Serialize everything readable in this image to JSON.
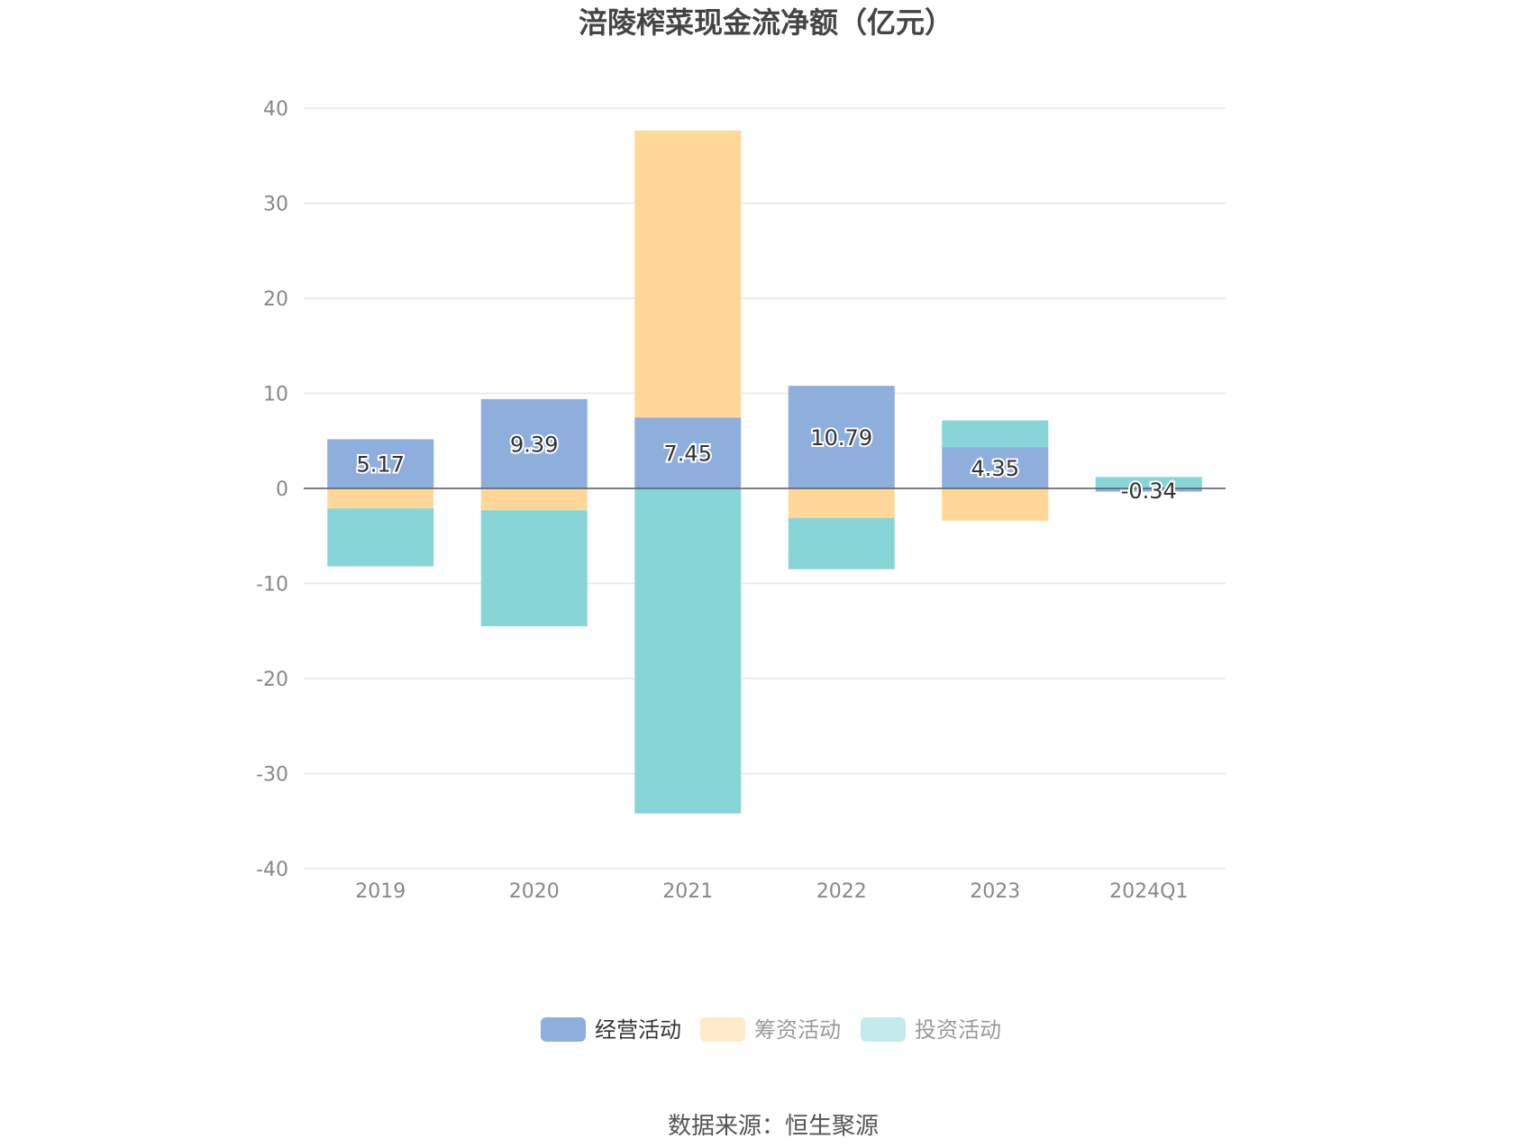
{
  "chart_data": {
    "type": "bar",
    "stacked": true,
    "title": "涪陵榨菜现金流净额（亿元）",
    "categories": [
      "2019",
      "2020",
      "2021",
      "2022",
      "2023",
      "2024Q1"
    ],
    "series": [
      {
        "name": "经营活动",
        "color": "#8eaedc",
        "values": [
          5.17,
          9.39,
          7.45,
          10.79,
          4.35,
          -0.34
        ]
      },
      {
        "name": "筹资活动",
        "color": "#ffd899",
        "values": [
          -2.1,
          -2.3,
          30.2,
          -3.1,
          -3.4,
          0.0
        ]
      },
      {
        "name": "投资活动",
        "color": "#88d5d8",
        "values": [
          -6.1,
          -12.2,
          -34.2,
          -5.4,
          2.8,
          1.2
        ]
      }
    ],
    "data_labels_series": "经营活动",
    "data_labels": [
      "5.17",
      "9.39",
      "7.45",
      "10.79",
      "4.35",
      "-0.34"
    ],
    "yticks": [
      40,
      30,
      20,
      10,
      0,
      -10,
      -20,
      -30,
      -40
    ],
    "ylim": [
      -40,
      40
    ],
    "grid": true,
    "legend_position": "bottom",
    "legend_colors": [
      "#8eaedc",
      "#ffeacc",
      "#c4eaec"
    ],
    "legend_text_colors": [
      "#333333",
      "#999999",
      "#999999"
    ]
  },
  "source": "数据来源：恒生聚源"
}
